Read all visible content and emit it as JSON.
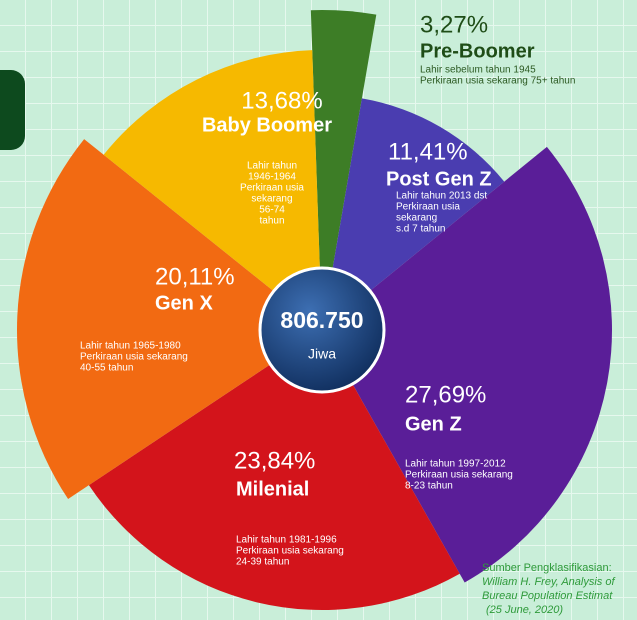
{
  "chart_data": {
    "type": "pie",
    "categories": [
      "Pre-Boomer",
      "Post Gen Z",
      "Gen Z",
      "Milenial",
      "Gen X",
      "Baby Boomer"
    ],
    "values": [
      3.27,
      11.41,
      27.69,
      23.84,
      20.11,
      13.68
    ],
    "value_labels": [
      "3,27%",
      "11,41%",
      "27,69%",
      "23,84%",
      "20,11%",
      "13,68%"
    ],
    "colors": [
      "#3d7d26",
      "#4a3db0",
      "#5a1e98",
      "#d3141b",
      "#f26a12",
      "#f6b900"
    ],
    "descriptions": [
      [
        "Lahir sebelum tahun 1945",
        "Perkiraan usia sekarang 75+ tahun"
      ],
      [
        "Lahir tahun 2013 dst",
        "Perkiraan usia",
        "sekarang",
        "s.d 7 tahun"
      ],
      [
        "Lahir tahun 1997-2012",
        "Perkiraan usia sekarang",
        "8-23 tahun"
      ],
      [
        "Lahir tahun 1981-1996",
        "Perkiraan usia sekarang",
        "24-39 tahun"
      ],
      [
        "Lahir tahun 1965-1980",
        "Perkiraan usia sekarang",
        "40-55 tahun"
      ],
      [
        "Lahir tahun",
        "1946-1964",
        "Perkiraan usia",
        "sekarang",
        "56-74",
        "tahun"
      ]
    ],
    "center_value": "806.750",
    "center_label": "Jiwa",
    "source": [
      "Sumber Pengklasifikasian:",
      "William H. Frey, Analysis of",
      "Bureau Population Estimat",
      "(25 June, 2020)"
    ]
  }
}
